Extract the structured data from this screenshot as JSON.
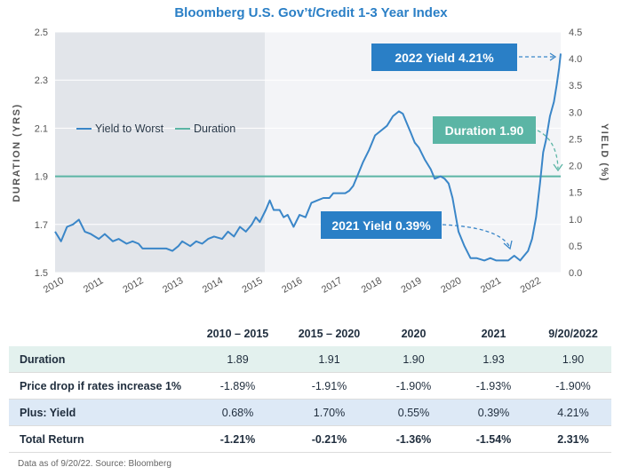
{
  "chart_data": {
    "type": "line",
    "title": "Bloomberg U.S. Gov’t/Credit 1-3 Year Index",
    "left_axis_label": "DURATION (YRS)",
    "right_axis_label": "YIELD (%)",
    "x_ticks": [
      "2010",
      "2011",
      "2012",
      "2013",
      "2014",
      "2015",
      "2016",
      "2017",
      "2018",
      "2019",
      "2020",
      "2021",
      "2022"
    ],
    "y_left_ticks": [
      "1.5",
      "1.7",
      "1.9",
      "2.1",
      "2.3",
      "2.5"
    ],
    "y_left_range": [
      1.5,
      2.5
    ],
    "y_right_ticks": [
      "0.0",
      "0.5",
      "1.0",
      "1.5",
      "2.0",
      "2.5",
      "3.0",
      "3.5",
      "4.0",
      "4.5"
    ],
    "y_right_range": [
      0,
      4.5
    ],
    "x_range": [
      2010.0,
      2022.72
    ],
    "shaded_period": [
      2010.0,
      2015.0
    ],
    "legend": [
      "Yield to Worst",
      "Duration"
    ],
    "series": [
      {
        "name": "Yield to Worst",
        "axis": "left",
        "color": "#3a86c8",
        "points": [
          [
            2010.0,
            1.67
          ],
          [
            2010.15,
            1.63
          ],
          [
            2010.3,
            1.69
          ],
          [
            2010.45,
            1.7
          ],
          [
            2010.6,
            1.72
          ],
          [
            2010.75,
            1.67
          ],
          [
            2010.9,
            1.66
          ],
          [
            2011.1,
            1.64
          ],
          [
            2011.25,
            1.66
          ],
          [
            2011.45,
            1.63
          ],
          [
            2011.6,
            1.64
          ],
          [
            2011.8,
            1.62
          ],
          [
            2011.95,
            1.63
          ],
          [
            2012.1,
            1.62
          ],
          [
            2012.2,
            1.6
          ],
          [
            2012.4,
            1.6
          ],
          [
            2012.6,
            1.6
          ],
          [
            2012.8,
            1.6
          ],
          [
            2012.95,
            1.59
          ],
          [
            2013.1,
            1.61
          ],
          [
            2013.2,
            1.63
          ],
          [
            2013.4,
            1.61
          ],
          [
            2013.55,
            1.63
          ],
          [
            2013.7,
            1.62
          ],
          [
            2013.85,
            1.64
          ],
          [
            2014.0,
            1.65
          ],
          [
            2014.2,
            1.64
          ],
          [
            2014.35,
            1.67
          ],
          [
            2014.5,
            1.65
          ],
          [
            2014.65,
            1.69
          ],
          [
            2014.8,
            1.67
          ],
          [
            2014.95,
            1.7
          ],
          [
            2015.05,
            1.73
          ],
          [
            2015.15,
            1.71
          ],
          [
            2015.3,
            1.76
          ],
          [
            2015.4,
            1.8
          ],
          [
            2015.5,
            1.76
          ],
          [
            2015.65,
            1.76
          ],
          [
            2015.75,
            1.73
          ],
          [
            2015.85,
            1.74
          ],
          [
            2016.0,
            1.69
          ],
          [
            2016.15,
            1.74
          ],
          [
            2016.3,
            1.73
          ],
          [
            2016.45,
            1.79
          ],
          [
            2016.6,
            1.8
          ],
          [
            2016.75,
            1.81
          ],
          [
            2016.9,
            1.81
          ],
          [
            2017.0,
            1.83
          ],
          [
            2017.15,
            1.83
          ],
          [
            2017.3,
            1.83
          ],
          [
            2017.4,
            1.84
          ],
          [
            2017.5,
            1.86
          ],
          [
            2017.6,
            1.9
          ],
          [
            2017.75,
            1.96
          ],
          [
            2017.9,
            2.01
          ],
          [
            2018.05,
            2.07
          ],
          [
            2018.2,
            2.09
          ],
          [
            2018.35,
            2.11
          ],
          [
            2018.5,
            2.15
          ],
          [
            2018.65,
            2.17
          ],
          [
            2018.75,
            2.16
          ],
          [
            2018.85,
            2.12
          ],
          [
            2018.95,
            2.08
          ],
          [
            2019.05,
            2.04
          ],
          [
            2019.15,
            2.02
          ],
          [
            2019.3,
            1.97
          ],
          [
            2019.45,
            1.93
          ],
          [
            2019.55,
            1.89
          ],
          [
            2019.7,
            1.9
          ],
          [
            2019.8,
            1.89
          ],
          [
            2019.9,
            1.87
          ],
          [
            2020.0,
            1.81
          ],
          [
            2020.15,
            1.67
          ],
          [
            2020.3,
            1.61
          ],
          [
            2020.45,
            1.56
          ],
          [
            2020.6,
            1.56
          ],
          [
            2020.8,
            1.55
          ],
          [
            2020.95,
            1.56
          ],
          [
            2021.1,
            1.55
          ],
          [
            2021.25,
            1.55
          ],
          [
            2021.4,
            1.55
          ],
          [
            2021.55,
            1.57
          ],
          [
            2021.7,
            1.55
          ],
          [
            2021.8,
            1.57
          ],
          [
            2021.9,
            1.59
          ],
          [
            2022.0,
            1.64
          ],
          [
            2022.1,
            1.73
          ],
          [
            2022.2,
            1.87
          ],
          [
            2022.28,
            2.0
          ],
          [
            2022.35,
            2.05
          ],
          [
            2022.45,
            2.15
          ],
          [
            2022.55,
            2.21
          ],
          [
            2022.62,
            2.28
          ],
          [
            2022.68,
            2.35
          ],
          [
            2022.72,
            2.41
          ]
        ]
      },
      {
        "name": "Duration",
        "axis": "left",
        "color": "#5bb5a5",
        "value": 1.9
      }
    ],
    "annotations": [
      {
        "text": "2022 Yield 4.21%",
        "color": "#2a7fc6"
      },
      {
        "text": "Duration 1.90",
        "color": "#5bb5a5"
      },
      {
        "text": "2021 Yield 0.39%",
        "color": "#2a7fc6"
      }
    ]
  },
  "table": {
    "headers": [
      "",
      "2010 – 2015",
      "2015 – 2020",
      "2020",
      "2021",
      "9/20/2022"
    ],
    "rows": [
      {
        "label": "Duration",
        "values": [
          "1.89",
          "1.91",
          "1.90",
          "1.93",
          "1.90"
        ]
      },
      {
        "label": "Price drop if rates increase 1%",
        "values": [
          "-1.89%",
          "-1.91%",
          "-1.90%",
          "-1.93%",
          "-1.90%"
        ]
      },
      {
        "label": "Plus: Yield",
        "values": [
          "0.68%",
          "1.70%",
          "0.55%",
          "0.39%",
          "4.21%"
        ]
      },
      {
        "label": "Total Return",
        "values": [
          "-1.21%",
          "-0.21%",
          "-1.36%",
          "-1.54%",
          "2.31%"
        ]
      }
    ]
  },
  "footnote": "Data as of 9/20/22. Source: Bloomberg"
}
